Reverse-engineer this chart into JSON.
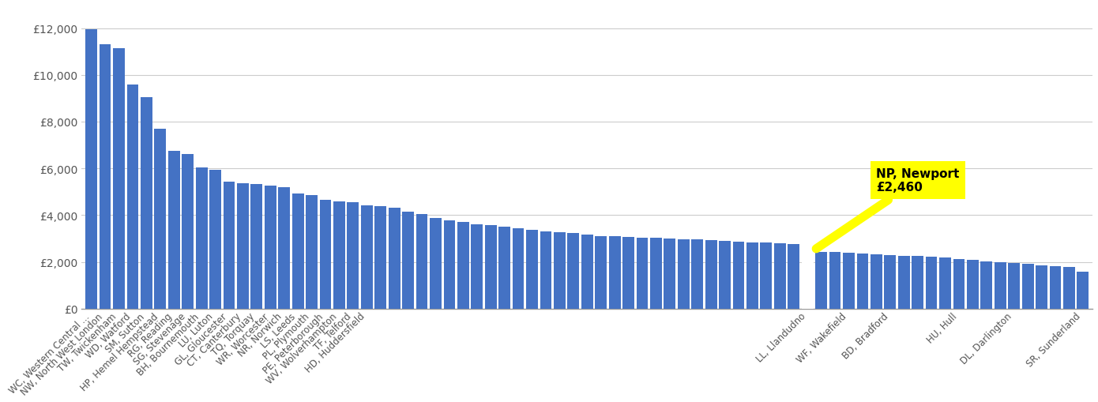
{
  "values": [
    11950,
    11300,
    11150,
    9600,
    9050,
    7700,
    6750,
    6600,
    6050,
    5950,
    5430,
    5370,
    5330,
    5270,
    5200,
    4920,
    4870,
    4650,
    4600,
    4560,
    4430,
    4380,
    4310,
    4130,
    4040,
    3890,
    3780,
    3710,
    3610,
    3580,
    3520,
    3440,
    3370,
    3310,
    3260,
    3220,
    3180,
    3110,
    3090,
    3070,
    3040,
    3020,
    2990,
    2960,
    2950,
    2920,
    2900,
    2870,
    2840,
    2820,
    2790,
    2770,
    2460,
    2440,
    2410,
    2380,
    2350,
    2310,
    2290,
    2270,
    2240,
    2220,
    2180,
    2120,
    2090,
    2020,
    1980,
    1940,
    1900,
    1850,
    1810,
    1790,
    1570
  ],
  "labels": [
    "WC, Western Central ...",
    "NW, North West London",
    "TW, Twickenham",
    "WD, Watford",
    "SM, Sutton",
    "HP, Hemel Hempstead",
    "RG, Reading",
    "SG, Stevenage",
    "BH, Bournemouth",
    "LU, Luton",
    "GL, Gloucester",
    "CT, Canterbury",
    "TQ, Torquay",
    "WR, Worcester",
    "NR, Norwich",
    "LS, Leeds",
    "PL, Plymouth",
    "PE, Peterborough",
    "WV, Wolverhampton",
    "TF, Telford",
    "HD, Huddersfield",
    "LL, Llandudno",
    "WF, Wakefield",
    "BD, Bradford",
    "HU, Hull",
    "DL, Darlington",
    "SR, Sunderland"
  ],
  "bar_color": "#4472C4",
  "highlight_color": "#FFFFFF",
  "highlight_index": 52,
  "highlight_label_line1": "NP, Newport",
  "highlight_label_line2": "£2,460",
  "background_color": "#FFFFFF",
  "grid_color": "#CCCCCC",
  "ytick_labels": [
    "£0",
    "£2,000",
    "£4,000",
    "£6,000",
    "£8,000",
    "£10,000",
    "£12,000"
  ],
  "ytick_values": [
    0,
    2000,
    4000,
    6000,
    8000,
    10000,
    12000
  ],
  "ylim": [
    0,
    13000
  ],
  "all_xlabels": [
    "WC, Western Central ...",
    "NW, North West London",
    "TW, Twickenham",
    "WD, Watford",
    "SM, Sutton",
    "HP, Hemel Hempstead",
    "RG, Reading",
    "SG, Stevenage",
    "BH, Bournemouth",
    "LU, Luton",
    "GL, Gloucester",
    "CT, Canterbury",
    "TQ, Torquay",
    "WR, Worcester",
    "NR, Norwich",
    "LS, Leeds",
    "PL, Plymouth",
    "PE, Peterborough",
    "WV, Wolverhampton",
    "TF, Telford",
    "HD, Huddersfield",
    "LL, Llandudno",
    "WF, Wakefield",
    "BD, Bradford",
    "HU, Hull",
    "DL, Darlington",
    "SR, Sunderland"
  ]
}
